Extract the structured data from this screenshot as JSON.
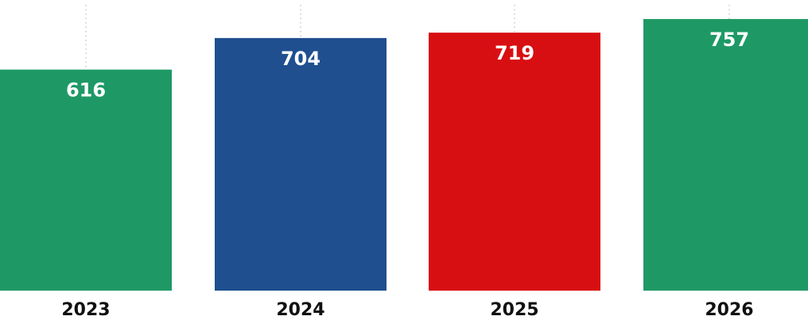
{
  "chart_data": {
    "type": "bar",
    "categories": [
      "2023",
      "2024",
      "2025",
      "2026"
    ],
    "values": [
      616,
      704,
      719,
      757
    ],
    "colors": [
      "#1e9966",
      "#1f4f8f",
      "#d80f12",
      "#1e9966"
    ],
    "value_label_color": "#ffffff",
    "title": "",
    "xlabel": "",
    "ylabel": "",
    "ylim": [
      0,
      810
    ],
    "grid": "vertical dotted",
    "legend": "none"
  }
}
